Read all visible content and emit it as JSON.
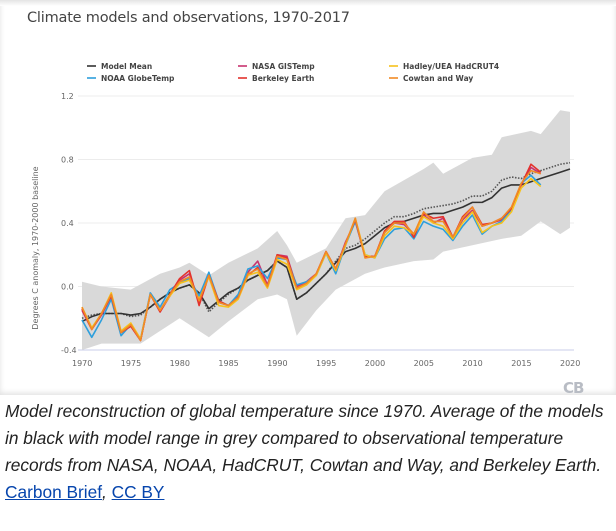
{
  "chart_data": {
    "type": "line",
    "title": "Climate models and observations, 1970-2017",
    "ylabel": "Degrees C anomaly, 1970-2000 baseline",
    "xlabel": "",
    "xlim": [
      1970,
      2020
    ],
    "ylim": [
      -0.4,
      1.2
    ],
    "xticks": [
      1970,
      1975,
      1980,
      1985,
      1990,
      1995,
      2000,
      2005,
      2010,
      2015,
      2020
    ],
    "yticks": [
      -0.4,
      0.0,
      0.4,
      0.8,
      1.2
    ],
    "ytick_labels": [
      "-0.4",
      "0.0",
      "0.4",
      "0.8",
      "1.2"
    ],
    "grid": true,
    "legend_position": "top",
    "model_range": {
      "color": "#d9d9d9",
      "upper": {
        "x": [
          1970,
          1972,
          1975,
          1978,
          1980,
          1981,
          1983,
          1985,
          1988,
          1990,
          1991,
          1992,
          1995,
          1997,
          1999,
          2001,
          2003,
          2005,
          2006,
          2007,
          2010,
          2012,
          2013,
          2016,
          2017,
          2019,
          2020
        ],
        "y": [
          0.03,
          0.0,
          -0.02,
          0.08,
          0.12,
          0.15,
          0.07,
          0.15,
          0.24,
          0.35,
          0.26,
          0.15,
          0.24,
          0.43,
          0.45,
          0.6,
          0.67,
          0.74,
          0.78,
          0.71,
          0.81,
          0.83,
          0.94,
          0.98,
          0.96,
          1.11,
          1.1
        ]
      },
      "lower": {
        "x": [
          1970,
          1972,
          1976,
          1980,
          1983,
          1985,
          1988,
          1990,
          1991,
          1992,
          1994,
          1996,
          1999,
          2001,
          2004,
          2006,
          2007,
          2010,
          2013,
          2015,
          2017,
          2019,
          2020
        ],
        "y": [
          -0.4,
          -0.36,
          -0.36,
          -0.2,
          -0.32,
          -0.22,
          -0.08,
          -0.05,
          -0.08,
          -0.31,
          -0.15,
          -0.02,
          0.08,
          0.12,
          0.16,
          0.17,
          0.22,
          0.26,
          0.3,
          0.32,
          0.41,
          0.33,
          0.37
        ]
      }
    },
    "model_mean": {
      "name": "Model Mean",
      "color": "#333333",
      "x_start": 1970,
      "values": [
        -0.22,
        -0.19,
        -0.17,
        -0.17,
        -0.17,
        -0.18,
        -0.17,
        -0.13,
        -0.08,
        -0.04,
        -0.01,
        0.01,
        -0.04,
        -0.14,
        -0.09,
        -0.04,
        -0.01,
        0.04,
        0.07,
        0.1,
        0.16,
        0.12,
        -0.08,
        -0.04,
        0.02,
        0.08,
        0.15,
        0.22,
        0.24,
        0.27,
        0.32,
        0.37,
        0.4,
        0.41,
        0.43,
        0.45,
        0.46,
        0.46,
        0.48,
        0.5,
        0.53,
        0.53,
        0.56,
        0.62,
        0.64,
        0.64,
        0.66,
        0.68,
        0.7,
        0.72,
        0.74
      ]
    },
    "model_mean_dotted": {
      "color": "#555555",
      "x_start": 1970,
      "values": [
        -0.2,
        -0.18,
        -0.17,
        -0.17,
        -0.17,
        -0.19,
        -0.18,
        -0.13,
        -0.08,
        -0.04,
        -0.01,
        0.01,
        -0.04,
        -0.16,
        -0.1,
        -0.05,
        -0.01,
        0.04,
        0.07,
        0.1,
        0.16,
        0.12,
        -0.08,
        -0.04,
        0.02,
        0.08,
        0.16,
        0.24,
        0.26,
        0.3,
        0.35,
        0.4,
        0.44,
        0.44,
        0.46,
        0.49,
        0.5,
        0.51,
        0.52,
        0.54,
        0.57,
        0.57,
        0.6,
        0.67,
        0.69,
        0.68,
        0.71,
        0.73,
        0.75,
        0.77,
        0.78
      ]
    },
    "series": [
      {
        "name": "NASA GISTemp",
        "color": "#c8336f",
        "x_start": 1970,
        "values": [
          -0.15,
          -0.27,
          -0.18,
          -0.06,
          -0.29,
          -0.25,
          -0.34,
          -0.05,
          -0.16,
          -0.06,
          0.04,
          0.08,
          -0.1,
          0.07,
          -0.1,
          -0.12,
          -0.06,
          0.09,
          0.16,
          0.01,
          0.2,
          0.19,
          0.0,
          0.03,
          0.08,
          0.22,
          0.11,
          0.28,
          0.41,
          0.19,
          0.19,
          0.34,
          0.4,
          0.39,
          0.33,
          0.45,
          0.4,
          0.43,
          0.31,
          0.42,
          0.48,
          0.38,
          0.4,
          0.42,
          0.48,
          0.64,
          0.75,
          0.71
        ]
      },
      {
        "name": "NOAA GlobeTemp",
        "color": "#2e9fdc",
        "x_start": 1970,
        "values": [
          -0.21,
          -0.32,
          -0.21,
          -0.08,
          -0.31,
          -0.24,
          -0.33,
          -0.04,
          -0.13,
          -0.02,
          0.02,
          0.05,
          -0.06,
          0.09,
          -0.09,
          -0.12,
          -0.05,
          0.11,
          0.13,
          0.05,
          0.18,
          0.17,
          0.01,
          0.03,
          0.07,
          0.21,
          0.08,
          0.26,
          0.41,
          0.2,
          0.18,
          0.3,
          0.36,
          0.37,
          0.3,
          0.41,
          0.38,
          0.36,
          0.29,
          0.38,
          0.45,
          0.33,
          0.38,
          0.41,
          0.48,
          0.65,
          0.7,
          0.64
        ]
      },
      {
        "name": "Berkeley Earth",
        "color": "#e3322d",
        "x_start": 1970,
        "values": [
          -0.14,
          -0.27,
          -0.17,
          -0.06,
          -0.29,
          -0.25,
          -0.34,
          -0.05,
          -0.16,
          -0.05,
          0.05,
          0.1,
          -0.12,
          0.07,
          -0.09,
          -0.12,
          -0.07,
          0.07,
          0.12,
          0.0,
          0.2,
          0.18,
          -0.01,
          0.02,
          0.08,
          0.22,
          0.11,
          0.27,
          0.42,
          0.19,
          0.19,
          0.35,
          0.41,
          0.41,
          0.31,
          0.46,
          0.43,
          0.44,
          0.31,
          0.44,
          0.5,
          0.39,
          0.4,
          0.43,
          0.49,
          0.64,
          0.77,
          0.72
        ]
      },
      {
        "name": "Hadley/UEA HadCRUT4",
        "color": "#f6c21c",
        "x_start": 1970,
        "values": [
          -0.13,
          -0.26,
          -0.17,
          -0.04,
          -0.28,
          -0.23,
          -0.33,
          -0.05,
          -0.15,
          -0.06,
          0.02,
          0.04,
          -0.08,
          0.06,
          -0.12,
          -0.13,
          -0.08,
          0.07,
          0.09,
          -0.01,
          0.17,
          0.14,
          -0.02,
          0.01,
          0.07,
          0.21,
          0.1,
          0.26,
          0.43,
          0.2,
          0.18,
          0.32,
          0.38,
          0.37,
          0.33,
          0.44,
          0.4,
          0.38,
          0.3,
          0.4,
          0.47,
          0.34,
          0.38,
          0.4,
          0.47,
          0.62,
          0.68,
          0.63
        ]
      },
      {
        "name": "Cowtan and Way",
        "color": "#f18a25",
        "x_start": 1970,
        "values": [
          -0.13,
          -0.27,
          -0.17,
          -0.05,
          -0.29,
          -0.24,
          -0.34,
          -0.05,
          -0.15,
          -0.05,
          0.03,
          0.06,
          -0.09,
          0.07,
          -0.1,
          -0.12,
          -0.07,
          0.08,
          0.11,
          0.0,
          0.19,
          0.17,
          -0.01,
          0.02,
          0.08,
          0.22,
          0.11,
          0.27,
          0.43,
          0.18,
          0.19,
          0.34,
          0.4,
          0.4,
          0.33,
          0.47,
          0.41,
          0.41,
          0.31,
          0.43,
          0.5,
          0.38,
          0.4,
          0.43,
          0.5,
          0.65,
          0.73,
          0.71
        ]
      }
    ]
  },
  "legend": [
    "Model Mean",
    "NASA GISTemp",
    "Hadley/UEA HadCRUT4",
    "NOAA GlobeTemp",
    "Berkeley Earth",
    "Cowtan and Way"
  ],
  "logo": "CB",
  "caption": {
    "text": "Model reconstruction of global temperature since 1970. Average of the models in black with model range in grey compared to observational temperature records from NASA, NOAA, HadCRUT, Cowtan and Way, and Berkeley Earth. ",
    "link1": "Carbon Brief",
    "separator": ", ",
    "link2": "CC BY"
  }
}
